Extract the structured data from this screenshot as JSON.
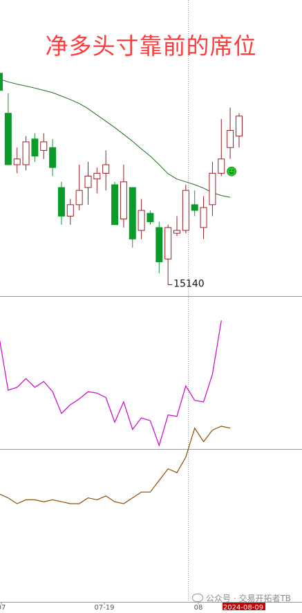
{
  "title": "净多头寸靠前的席位",
  "watermark": "公众号 · 交易开拓者TB",
  "colors": {
    "up": "#a0191e",
    "down": "#0a9c2a",
    "ma": "#1f6b1f",
    "mid_line": "#cc00cc",
    "bottom_line": "#8b4a00",
    "grid": "#9a9a9a",
    "date_highlight": "#cc0000",
    "title": "#ff3b3b"
  },
  "chart_data": [
    {
      "type": "candlestick",
      "panel": "price",
      "low_label": "15140",
      "low_marker_value": 15140,
      "ylim": [
        15100,
        16100
      ],
      "candles": [
        {
          "o": 15880,
          "h": 15920,
          "l": 15760,
          "c": 15820
        },
        {
          "o": 15740,
          "h": 15810,
          "l": 15560,
          "c": 15560
        },
        {
          "o": 15560,
          "h": 15620,
          "l": 15530,
          "c": 15580
        },
        {
          "o": 15560,
          "h": 15660,
          "l": 15540,
          "c": 15640
        },
        {
          "o": 15650,
          "h": 15670,
          "l": 15570,
          "c": 15590
        },
        {
          "o": 15610,
          "h": 15670,
          "l": 15580,
          "c": 15640
        },
        {
          "o": 15620,
          "h": 15650,
          "l": 15520,
          "c": 15550
        },
        {
          "o": 15480,
          "h": 15500,
          "l": 15350,
          "c": 15380
        },
        {
          "o": 15380,
          "h": 15440,
          "l": 15350,
          "c": 15420
        },
        {
          "o": 15420,
          "h": 15560,
          "l": 15400,
          "c": 15470
        },
        {
          "o": 15480,
          "h": 15570,
          "l": 15420,
          "c": 15520
        },
        {
          "o": 15510,
          "h": 15550,
          "l": 15460,
          "c": 15530
        },
        {
          "o": 15530,
          "h": 15610,
          "l": 15470,
          "c": 15560
        },
        {
          "o": 15490,
          "h": 15500,
          "l": 15350,
          "c": 15350
        },
        {
          "o": 15370,
          "h": 15560,
          "l": 15340,
          "c": 15500
        },
        {
          "o": 15480,
          "h": 15480,
          "l": 15270,
          "c": 15300
        },
        {
          "o": 15330,
          "h": 15440,
          "l": 15300,
          "c": 15400
        },
        {
          "o": 15390,
          "h": 15400,
          "l": 15350,
          "c": 15360
        },
        {
          "o": 15340,
          "h": 15360,
          "l": 15180,
          "c": 15220
        },
        {
          "o": 15230,
          "h": 15350,
          "l": 15140,
          "c": 15340
        },
        {
          "o": 15320,
          "h": 15380,
          "l": 15310,
          "c": 15330
        },
        {
          "o": 15330,
          "h": 15490,
          "l": 15320,
          "c": 15470
        },
        {
          "o": 15420,
          "h": 15470,
          "l": 15380,
          "c": 15400
        },
        {
          "o": 15340,
          "h": 15450,
          "l": 15300,
          "c": 15410
        },
        {
          "o": 15420,
          "h": 15570,
          "l": 15380,
          "c": 15530
        },
        {
          "o": 15530,
          "h": 15720,
          "l": 15520,
          "c": 15580
        },
        {
          "o": 15620,
          "h": 15760,
          "l": 15580,
          "c": 15680
        },
        {
          "o": 15660,
          "h": 15740,
          "l": 15620,
          "c": 15730
        }
      ],
      "ma": [
        15860,
        15850,
        15842,
        15835,
        15828,
        15820,
        15812,
        15800,
        15788,
        15774,
        15756,
        15734,
        15712,
        15690,
        15666,
        15642,
        15615,
        15590,
        15560,
        15528,
        15510,
        15500,
        15490,
        15478,
        15462,
        15452,
        15446
      ],
      "smiley_on_candle": 26
    },
    {
      "type": "line",
      "panel": "indicator-1",
      "ylim": [
        0,
        100
      ],
      "values": [
        76,
        40,
        42,
        48,
        42,
        46,
        39,
        24,
        30,
        34,
        39,
        38,
        35,
        18,
        32,
        13,
        21,
        19,
        2,
        23,
        22,
        43,
        33,
        32,
        51,
        88
      ]
    },
    {
      "type": "line",
      "panel": "indicator-2",
      "ylim": [
        0,
        100
      ],
      "values": [
        45,
        43,
        40,
        42,
        42,
        41,
        42,
        41,
        40,
        40,
        43,
        42,
        44,
        41,
        40,
        43,
        46,
        46,
        52,
        58,
        56,
        64,
        79,
        72,
        78,
        80,
        79
      ]
    }
  ],
  "x_axis": {
    "labels": [
      "07",
      "07-19",
      "08",
      "2024-08-09"
    ],
    "highlight_label": "2024-08-09"
  }
}
